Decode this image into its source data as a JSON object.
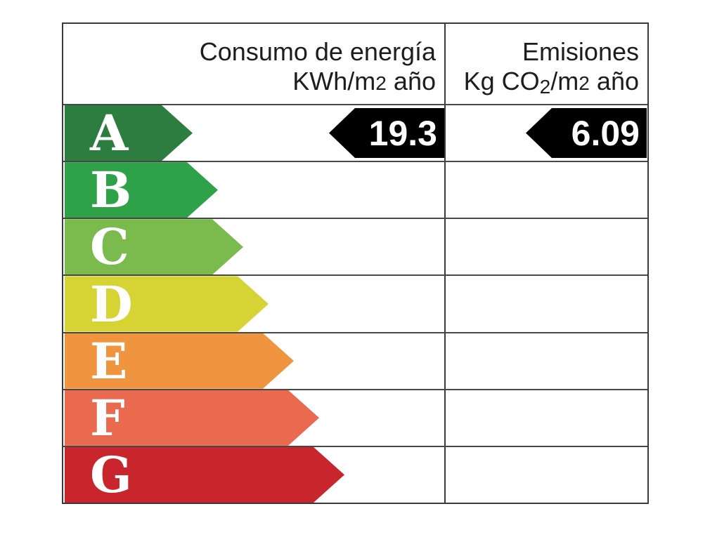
{
  "header": {
    "energy": {
      "line1": "Consumo de energía",
      "unit_base": "KWh/m",
      "unit_exp": "2",
      "unit_suffix": " año"
    },
    "emissions": {
      "line1": "Emisiones",
      "unit_base": "Kg CO",
      "unit_sub": "2",
      "unit_mid": "/m",
      "unit_exp": "2",
      "unit_suffix": " año"
    }
  },
  "ratings": [
    {
      "letter": "A",
      "color": "#2e7d40"
    },
    {
      "letter": "B",
      "color": "#2fa148"
    },
    {
      "letter": "C",
      "color": "#7bba4c"
    },
    {
      "letter": "D",
      "color": "#d6d334"
    },
    {
      "letter": "E",
      "color": "#f0953f"
    },
    {
      "letter": "F",
      "color": "#ea6a50"
    },
    {
      "letter": "G",
      "color": "#c8262c"
    }
  ],
  "values": {
    "consumption": "19.3",
    "emissions": "6.09",
    "rated_class": "A",
    "arrow_color": "#000000",
    "text_color": "#ffffff"
  },
  "chart_data": {
    "type": "table",
    "title": "Etiqueta de calificación de eficiencia energética",
    "columns": [
      "Consumo de energía KWh/m2 año",
      "Emisiones Kg CO2/m2 año"
    ],
    "scale": [
      "A",
      "B",
      "C",
      "D",
      "E",
      "F",
      "G"
    ],
    "scale_colors": [
      "#2e7d40",
      "#2fa148",
      "#7bba4c",
      "#d6d334",
      "#f0953f",
      "#ea6a50",
      "#c8262c"
    ],
    "rated_class": "A",
    "consumption_kwh_m2_year": 19.3,
    "emissions_kg_co2_m2_year": 6.09,
    "legend_position": "none",
    "grid": true
  }
}
